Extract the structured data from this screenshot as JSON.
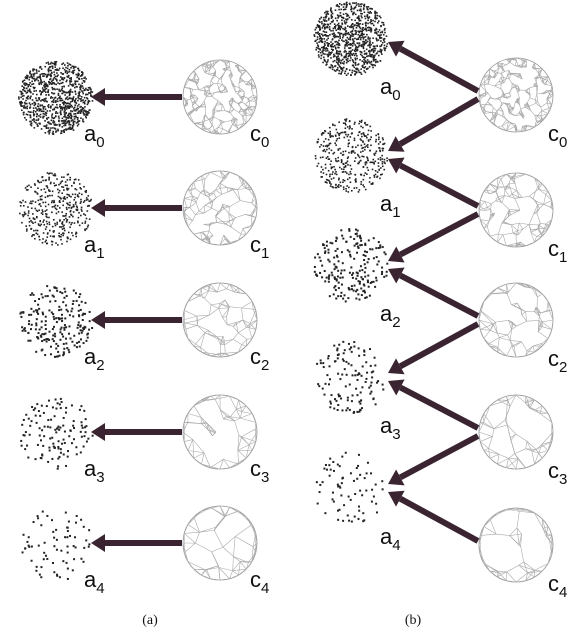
{
  "panels": [
    {
      "caption": "(a)",
      "points": [
        {
          "base": "a",
          "sub": "0"
        },
        {
          "base": "a",
          "sub": "1"
        },
        {
          "base": "a",
          "sub": "2"
        },
        {
          "base": "a",
          "sub": "3"
        },
        {
          "base": "a",
          "sub": "4"
        }
      ],
      "meshes": [
        {
          "base": "c",
          "sub": "0"
        },
        {
          "base": "c",
          "sub": "1"
        },
        {
          "base": "c",
          "sub": "2"
        },
        {
          "base": "c",
          "sub": "3"
        },
        {
          "base": "c",
          "sub": "4"
        }
      ]
    },
    {
      "caption": "(b)",
      "points": [
        {
          "base": "a",
          "sub": "0"
        },
        {
          "base": "a",
          "sub": "1"
        },
        {
          "base": "a",
          "sub": "2"
        },
        {
          "base": "a",
          "sub": "3"
        },
        {
          "base": "a",
          "sub": "4"
        }
      ],
      "meshes": [
        {
          "base": "c",
          "sub": "0"
        },
        {
          "base": "c",
          "sub": "1"
        },
        {
          "base": "c",
          "sub": "2"
        },
        {
          "base": "c",
          "sub": "3"
        },
        {
          "base": "c",
          "sub": "4"
        }
      ]
    }
  ]
}
